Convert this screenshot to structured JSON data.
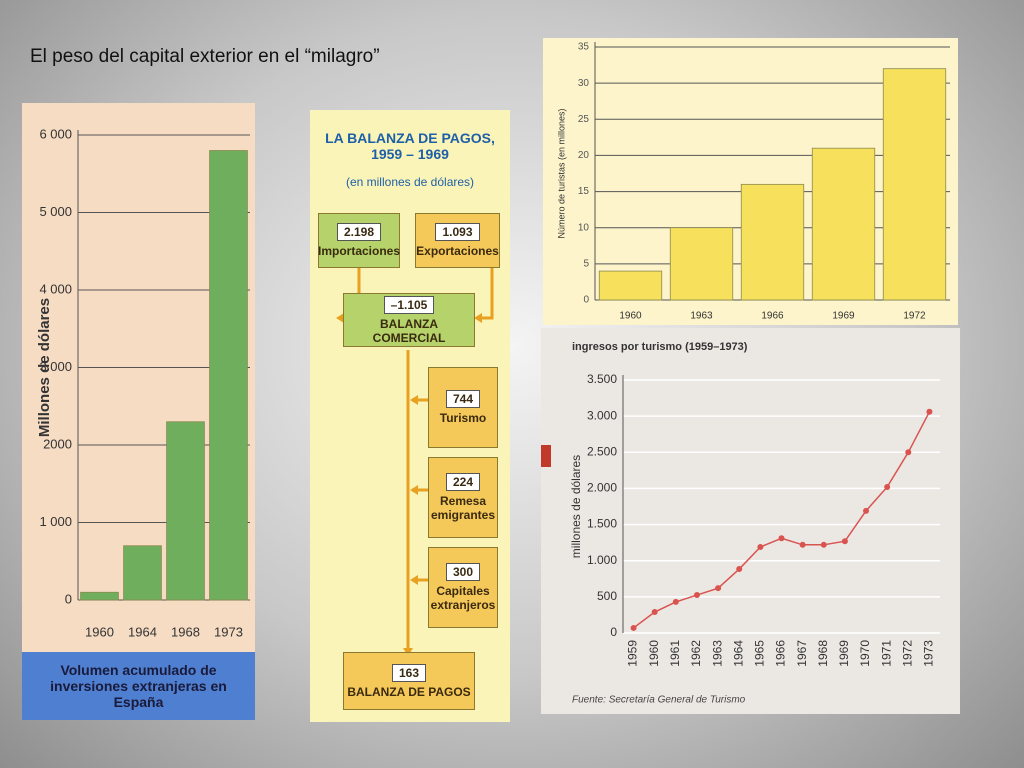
{
  "title": "El peso del capital exterior en el “milagro”",
  "chart_data": [
    {
      "type": "bar",
      "categories": [
        "1960",
        "1964",
        "1968",
        "1973"
      ],
      "values": [
        100,
        700,
        2300,
        5800
      ],
      "color": "#6fae5c",
      "ylabel": "Millones de dólares",
      "caption": "Volumen acumulado de inversiones extranjeras en España",
      "ylim": [
        0,
        6000
      ],
      "yticks": [
        0,
        {
          "value": 1000,
          "label": "1 000"
        },
        {
          "value": 2000,
          "label": "2000"
        },
        {
          "value": 3000,
          "label": "3 000"
        },
        {
          "value": 4000,
          "label": "4 000"
        },
        {
          "value": 5000,
          "label": "5 000"
        },
        {
          "value": 6000,
          "label": "6 000"
        }
      ],
      "grid": true
    },
    {
      "type": "bar",
      "categories": [
        "1960",
        "1963",
        "1966",
        "1969",
        "1972"
      ],
      "values": [
        4,
        10,
        16,
        21,
        32
      ],
      "color": "#f6e05c",
      "ylabel": "Número de turistas (en millones)",
      "ylim": [
        0,
        35
      ],
      "yticks": [
        0,
        5,
        10,
        15,
        20,
        25,
        30,
        35
      ],
      "grid": true
    },
    {
      "type": "line",
      "title": "ingresos por turismo (1959–1973)",
      "categories": [
        "1959",
        "1960",
        "1961",
        "1962",
        "1963",
        "1964",
        "1965",
        "1966",
        "1967",
        "1968",
        "1969",
        "1970",
        "1971",
        "1972",
        "1973"
      ],
      "values": [
        70,
        290,
        430,
        525,
        620,
        885,
        1190,
        1310,
        1220,
        1220,
        1270,
        1690,
        2020,
        2500,
        3060
      ],
      "color": "#d9534f",
      "ylabel": "millones de dólares",
      "source": "Fuente: Secretaría General de Turismo",
      "ylim": [
        0,
        3500
      ],
      "yticks": [
        0,
        500,
        {
          "value": 1000,
          "label": "1.000"
        },
        {
          "value": 1500,
          "label": "1.500"
        },
        {
          "value": 2000,
          "label": "2.000"
        },
        {
          "value": 2500,
          "label": "2.500"
        },
        {
          "value": 3000,
          "label": "3.000"
        },
        {
          "value": 3500,
          "label": "3.500"
        }
      ],
      "grid": true
    }
  ],
  "diagram": {
    "title": "LA BALANZA DE PAGOS, 1959 – 1969",
    "subtitle": "(en millones de dólares)",
    "nodes": [
      {
        "value": "2.198",
        "label": "Importaciones"
      },
      {
        "value": "1.093",
        "label": "Exportaciones"
      },
      {
        "value": "–1.105",
        "label": "BALANZA COMERCIAL"
      },
      {
        "value": "744",
        "label": "Turismo"
      },
      {
        "value": "224",
        "label": "Remesa emigrantes"
      },
      {
        "value": "300",
        "label": "Capitales extranjeros"
      },
      {
        "value": "163",
        "label": "BALANZA DE PAGOS"
      }
    ]
  }
}
